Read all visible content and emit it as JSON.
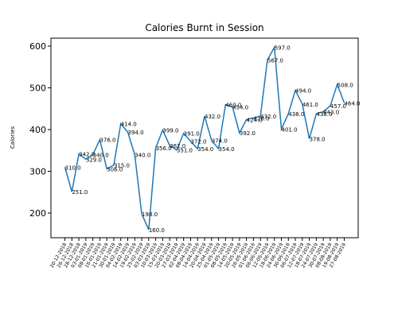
{
  "chart_data": {
    "type": "line",
    "title": "Calories Burnt in Session",
    "y_label": "Calories",
    "categories": [
      "20-12-2018",
      "26-12-2018",
      "28-12-2018",
      "03-01-2019",
      "08-01-2019",
      "16-01-2019",
      "21-01-2019",
      "30-01-2019",
      "04-02-2019",
      "14-02-2019",
      "19-02-2019",
      "25-02-2019",
      "03-03-2019",
      "10-03-2019",
      "15-03-2019",
      "20-03-2019",
      "27-03-2019",
      "02-04-2019",
      "08-04-2019",
      "14-04-2019",
      "20-04-2019",
      "25-04-2019",
      "01-05-2019",
      "08-05-2019",
      "14-05-2019",
      "20-05-2019",
      "26-05-2019",
      "01-06-2019",
      "06-06-2019",
      "12-06-2019",
      "18-06-2019",
      "24-06-2019",
      "30-06-2019",
      "06-07-2019",
      "12-07-2019",
      "18-07-2019",
      "24-07-2019",
      "30-07-2019",
      "08-08-2019",
      "19-08-2019",
      "27-08-2019"
    ],
    "values": [
      310,
      251,
      342,
      329,
      340,
      376,
      306,
      315,
      414,
      394,
      340,
      198,
      160,
      356,
      399,
      362,
      351,
      391,
      372,
      354,
      432,
      374,
      354,
      460,
      454,
      392,
      424,
      428,
      432,
      567,
      597,
      401,
      438,
      494,
      461,
      378,
      438,
      443,
      457,
      508,
      464
    ],
    "value_labels": [
      "310.0",
      "251.0",
      "342.0",
      "329.0",
      "340.0",
      "376.0",
      "306.0",
      "315.0",
      "414.0",
      "394.0",
      "340.0",
      "198.0",
      "160.0",
      "356.0",
      "399.0",
      "362.0",
      "351.0",
      "391.0",
      "372.0",
      "354.0",
      "432.0",
      "374.0",
      "354.0",
      "460.0",
      "454.0",
      "392.0",
      "424.0",
      "428.0",
      "432.0",
      "567.0",
      "597.0",
      "401.0",
      "438.0",
      "494.0",
      "461.0",
      "378.0",
      "438.0",
      "443.0",
      "457.0",
      "508.0",
      "464.0"
    ],
    "color": "#1f77b4",
    "ylim": [
      141,
      619
    ],
    "yticks": [
      200,
      300,
      400,
      500,
      600
    ]
  }
}
